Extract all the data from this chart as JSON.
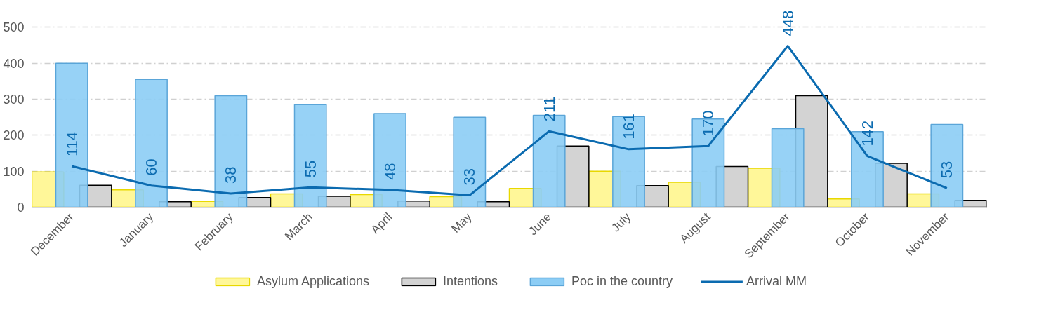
{
  "chart_data": {
    "type": "bar",
    "categories": [
      "December",
      "January",
      "February",
      "March",
      "April",
      "May",
      "June",
      "July",
      "August",
      "September",
      "October",
      "November"
    ],
    "series": [
      {
        "name": "Asylum Applications",
        "color": "#fff799",
        "values": [
          98,
          48,
          16,
          37,
          35,
          29,
          52,
          100,
          69,
          108,
          23,
          37
        ]
      },
      {
        "name": "Intentions",
        "color": "#d3d3d3",
        "values": [
          61,
          15,
          27,
          30,
          17,
          15,
          170,
          60,
          113,
          310,
          122,
          19
        ]
      },
      {
        "name": "Poc in the country",
        "color": "#8ccdf5",
        "values": [
          400,
          355,
          310,
          285,
          260,
          250,
          255,
          252,
          245,
          218,
          210,
          230
        ]
      },
      {
        "name": "Arrival MM",
        "type": "line",
        "color": "#0b6bb0",
        "values": [
          114,
          60,
          38,
          55,
          48,
          33,
          211,
          161,
          170,
          448,
          142,
          53
        ],
        "data_labels": true
      }
    ],
    "ylim": [
      0,
      565
    ],
    "yticks": [
      0,
      100,
      200,
      300,
      400,
      500
    ],
    "grid": "y",
    "legend": "bottom"
  }
}
